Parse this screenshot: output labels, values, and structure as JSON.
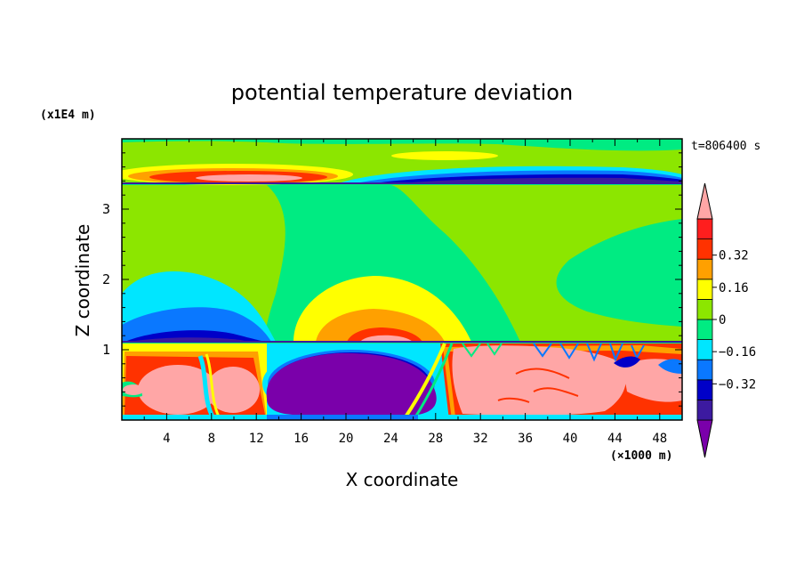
{
  "chart_data": {
    "type": "heatmap",
    "title": "potential temperature deviation",
    "xlabel": "X coordinate",
    "ylabel": "Z coordinate",
    "x_unit": "(×1000 m)",
    "y_unit": "(x1E4 m)",
    "time_label": "t=806400 s",
    "xlim": [
      0,
      50
    ],
    "ylim": [
      0,
      4
    ],
    "x_ticks": [
      "4",
      "8",
      "12",
      "16",
      "20",
      "24",
      "28",
      "32",
      "36",
      "40",
      "44",
      "48"
    ],
    "y_ticks": [
      "1",
      "2",
      "3"
    ],
    "colorbar": {
      "range": [
        -0.48,
        0.48
      ],
      "levels": [
        -0.4,
        -0.32,
        -0.24,
        -0.16,
        -0.08,
        0,
        0.08,
        0.16,
        0.24,
        0.32,
        0.4
      ],
      "tick_labels": [
        "0.32",
        "0.16",
        "0",
        "−0.16",
        "−0.32"
      ],
      "colors": [
        "#7a00aa",
        "#3c1aa0",
        "#0000c8",
        "#0a78ff",
        "#00e6ff",
        "#00eb82",
        "#8ce600",
        "#ffff00",
        "#ffa000",
        "#ff3200",
        "#ff1e1e",
        "#ffa6a6"
      ]
    },
    "features": [
      {
        "region": "upper layer band",
        "value": 0.48,
        "x": [
          4,
          15
        ],
        "z": [
          3.35,
          3.5
        ]
      },
      {
        "region": "upper layer band",
        "value": -0.4,
        "x": [
          22,
          50
        ],
        "z": [
          3.35,
          3.5
        ]
      },
      {
        "region": "mid layer",
        "value": -0.24,
        "x": [
          0,
          14
        ],
        "z": [
          1.1,
          2.1
        ]
      },
      {
        "region": "mid layer",
        "value": 0.16,
        "x": [
          16,
          28
        ],
        "z": [
          1.1,
          1.9
        ]
      },
      {
        "region": "lower layer",
        "value": -0.48,
        "x": [
          13,
          29
        ],
        "z": [
          0.1,
          0.95
        ]
      },
      {
        "region": "lower layer",
        "value": 0.48,
        "x": [
          29,
          50
        ],
        "z": [
          0.05,
          1.1
        ]
      },
      {
        "region": "lower layer",
        "value": 0.48,
        "x": [
          1,
          12
        ],
        "z": [
          0.1,
          0.85
        ]
      }
    ]
  }
}
